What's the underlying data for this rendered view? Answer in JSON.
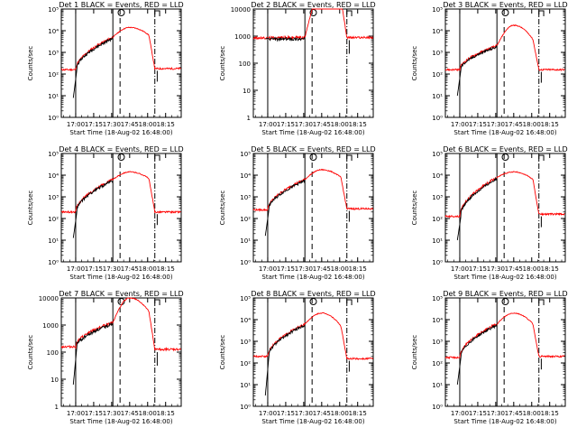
{
  "colors": {
    "events": "#000000",
    "lld": "#ff0000",
    "axis": "#000000",
    "background": "#ffffff"
  },
  "chart_data": [
    {
      "type": "line",
      "title": "Det 1  BLACK = Events, RED = LLD",
      "ylabel": "Counts/sec",
      "xlabel": "Start Time (18-Aug-02 16:48:00)",
      "yscale": "log",
      "ylim": [
        1,
        100000
      ],
      "ytick_labels": [
        "10⁰",
        "10¹",
        "10²",
        "10³",
        "10⁴",
        "10⁵"
      ],
      "xtick_labels": [
        "17:00",
        "17:15",
        "17:30",
        "17:45",
        "18:00",
        "18:15"
      ],
      "series": []
    },
    {
      "type": "line",
      "title": "Det 2  BLACK = Events, RED = LLD",
      "ylabel": "Counts/sec",
      "xlabel": "Start Time (18-Aug-02 16:48:00)",
      "yscale": "log",
      "ylim": [
        1,
        10000
      ],
      "ytick_labels": [
        "1",
        "10",
        "100",
        "1000",
        "10000"
      ],
      "xtick_labels": [
        "17:00",
        "17:15",
        "17:30",
        "17:45",
        "18:00",
        "18:15"
      ],
      "series": []
    },
    {
      "type": "line",
      "title": "Det 3  BLACK = Events, RED = LLD",
      "ylabel": "Counts/sec",
      "xlabel": "Start Time (18-Aug-02 16:48:00)",
      "yscale": "log",
      "ylim": [
        1,
        100000
      ],
      "ytick_labels": [
        "10⁰",
        "10¹",
        "10²",
        "10³",
        "10⁴",
        "10⁵"
      ],
      "xtick_labels": [
        "17:00",
        "17:15",
        "17:30",
        "17:45",
        "18:00",
        "18:15"
      ],
      "series": []
    },
    {
      "type": "line",
      "title": "Det 4  BLACK = Events, RED = LLD",
      "ylabel": "Counts/sec",
      "xlabel": "Start Time (18-Aug-02 16:48:00)",
      "yscale": "log",
      "ylim": [
        1,
        100000
      ],
      "ytick_labels": [
        "10⁰",
        "10¹",
        "10²",
        "10³",
        "10⁴",
        "10⁵"
      ],
      "xtick_labels": [
        "17:00",
        "17:15",
        "17:30",
        "17:45",
        "18:00",
        "18:15"
      ],
      "series": []
    },
    {
      "type": "line",
      "title": "Det 5  BLACK = Events, RED = LLD",
      "ylabel": "Counts/sec",
      "xlabel": "Start Time (18-Aug-02 16:48:00)",
      "yscale": "log",
      "ylim": [
        1,
        100000
      ],
      "ytick_labels": [
        "10⁰",
        "10¹",
        "10²",
        "10³",
        "10⁴",
        "10⁵"
      ],
      "xtick_labels": [
        "17:00",
        "17:15",
        "17:30",
        "17:45",
        "18:00",
        "18:15"
      ],
      "series": []
    },
    {
      "type": "line",
      "title": "Det 6  BLACK = Events, RED = LLD",
      "ylabel": "Counts/sec",
      "xlabel": "Start Time (18-Aug-02 16:48:00)",
      "yscale": "log",
      "ylim": [
        1,
        100000
      ],
      "ytick_labels": [
        "10⁰",
        "10¹",
        "10²",
        "10³",
        "10⁴",
        "10⁵"
      ],
      "xtick_labels": [
        "17:00",
        "17:15",
        "17:30",
        "17:45",
        "18:00",
        "18:15"
      ],
      "series": []
    },
    {
      "type": "line",
      "title": "Det 7  BLACK = Events, RED = LLD",
      "ylabel": "Counts/sec",
      "xlabel": "Start Time (18-Aug-02 16:48:00)",
      "yscale": "log",
      "ylim": [
        1,
        10000
      ],
      "ytick_labels": [
        "1",
        "10",
        "100",
        "1000",
        "10000"
      ],
      "xtick_labels": [
        "17:00",
        "17:15",
        "17:30",
        "17:45",
        "18:00",
        "18:15"
      ],
      "series": []
    },
    {
      "type": "line",
      "title": "Det 8  BLACK = Events, RED = LLD",
      "ylabel": "Counts/sec",
      "xlabel": "Start Time (18-Aug-02 16:48:00)",
      "yscale": "log",
      "ylim": [
        1,
        100000
      ],
      "ytick_labels": [
        "10⁰",
        "10¹",
        "10²",
        "10³",
        "10⁴",
        "10⁵"
      ],
      "xtick_labels": [
        "17:00",
        "17:15",
        "17:30",
        "17:45",
        "18:00",
        "18:15"
      ],
      "series": []
    },
    {
      "type": "line",
      "title": "Det 9  BLACK = Events, RED = LLD",
      "ylabel": "Counts/sec",
      "xlabel": "Start Time (18-Aug-02 16:48:00)",
      "yscale": "log",
      "ylim": [
        1,
        100000
      ],
      "ytick_labels": [
        "10⁰",
        "10¹",
        "10²",
        "10³",
        "10⁴",
        "10⁵"
      ],
      "xtick_labels": [
        "17:00",
        "17:15",
        "17:30",
        "17:45",
        "18:00",
        "18:15"
      ],
      "series": []
    }
  ]
}
